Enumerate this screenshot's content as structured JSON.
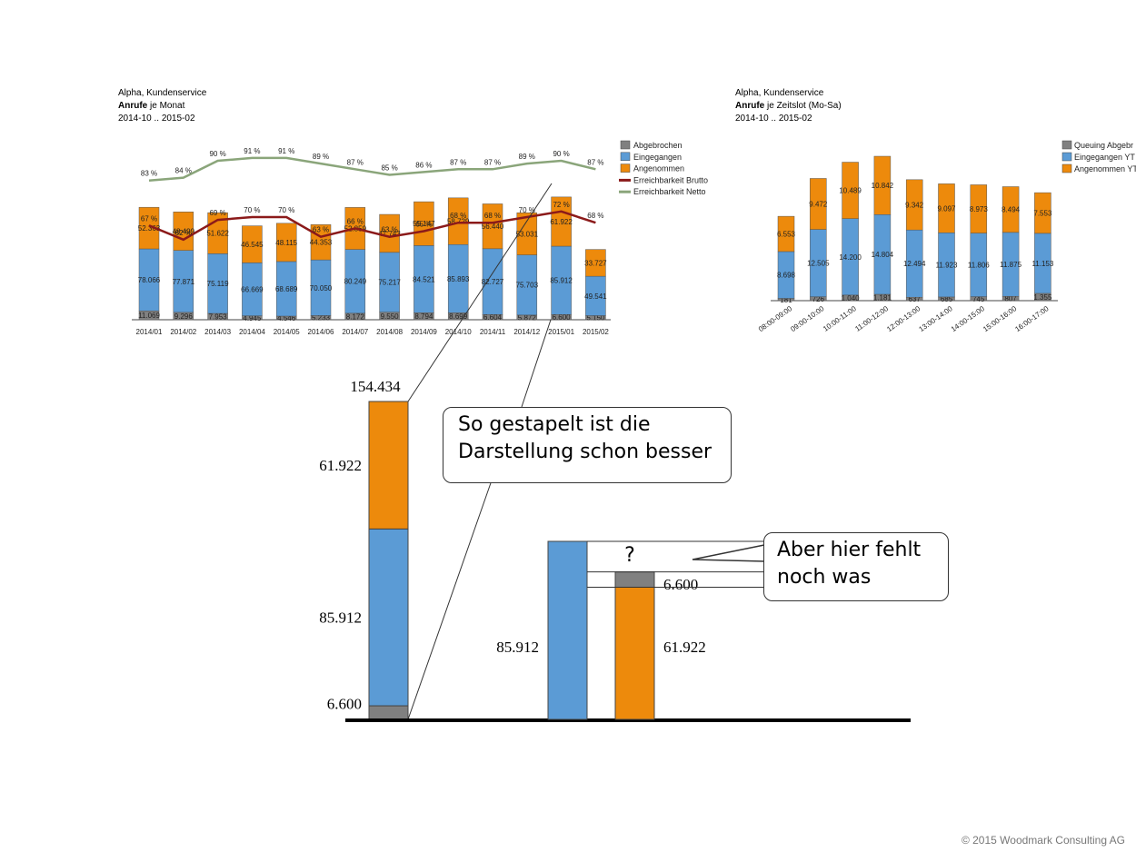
{
  "chart_left": {
    "header": {
      "line1": "Alpha, Kundenservice",
      "bold": "Anrufe",
      "rest": " je Monat",
      "range": "2014-10 .. 2015-02"
    },
    "legend": [
      "Abgebrochen",
      "Eingegangen",
      "Angenommen",
      "Erreichbarkeit Brutto",
      "Erreichbarkeit Netto"
    ]
  },
  "chart_right": {
    "header": {
      "line1": "Alpha, Kundenservice",
      "bold": "Anrufe",
      "rest": " je Zeitslot (Mo-Sa)",
      "range": "2014-10 .. 2015-02"
    },
    "legend": [
      "Queuing Abgebr",
      "Eingegangen YT",
      "Angenommen YT"
    ]
  },
  "chart_data": [
    {
      "type": "bar",
      "stacked": true,
      "categories": [
        "2014/01",
        "2014/02",
        "2014/03",
        "2014/04",
        "2014/05",
        "2014/06",
        "2014/07",
        "2014/08",
        "2014/09",
        "2014/10",
        "2014/11",
        "2014/12",
        "2015/01",
        "2015/02"
      ],
      "series": [
        {
          "name": "Abgebrochen",
          "color": "#808080",
          "values": [
            11069,
            9296,
            7953,
            4945,
            4546,
            5233,
            8172,
            9550,
            8794,
            8699,
            6604,
            5872,
            6600,
            5150
          ],
          "labels": [
            "11.069",
            "9.296",
            "7.953",
            "4.945",
            "4.546",
            "5.233",
            "8.172",
            "9.550",
            "8.794",
            "8.699",
            "6.604",
            "5.872",
            "6.600",
            "5.150"
          ]
        },
        {
          "name": "Eingegangen",
          "color": "#5b9bd5",
          "values": [
            78066,
            77871,
            75119,
            66669,
            68689,
            70050,
            80249,
            75217,
            84521,
            85893,
            82727,
            75703,
            85912,
            49541
          ],
          "labels": [
            "78.066",
            "77.871",
            "75.119",
            "66.669",
            "68.689",
            "70.050",
            "80.249",
            "75.217",
            "84.521",
            "85.893",
            "82.727",
            "75.703",
            "85.912",
            "49.541"
          ]
        },
        {
          "name": "Angenommen",
          "color": "#ed8a0c",
          "values": [
            52363,
            48499,
            51622,
            46545,
            48115,
            44353,
            52859,
            47743,
            55147,
            58729,
            56440,
            53031,
            61922,
            33727
          ],
          "labels": [
            "52.363",
            "48.499",
            "51.622",
            "46.545",
            "48.115",
            "44.353",
            "52.859",
            "47.743",
            "55.147",
            "58.729",
            "56.440",
            "53.031",
            "61.922",
            "33.727"
          ]
        }
      ],
      "lines": [
        {
          "name": "Erreichbarkeit Brutto",
          "color": "#8b1a1a",
          "values": [
            67,
            62,
            69,
            70,
            70,
            63,
            66,
            63,
            65,
            68,
            68,
            70,
            72,
            68
          ],
          "labels": [
            "67 %",
            "62 %",
            "69 %",
            "70 %",
            "70 %",
            "63 %",
            "66 %",
            "63 %",
            "65 %",
            "68 %",
            "68 %",
            "70 %",
            "72 %",
            "68 %"
          ]
        },
        {
          "name": "Erreichbarkeit Netto",
          "color": "#8aa57a",
          "values": [
            83,
            84,
            90,
            91,
            91,
            89,
            87,
            85,
            86,
            87,
            87,
            89,
            90,
            87
          ],
          "labels": [
            "83 %",
            "84 %",
            "90 %",
            "91 %",
            "91 %",
            "89 %",
            "87 %",
            "85 %",
            "86 %",
            "87 %",
            "87 %",
            "89 %",
            "90 %",
            "87 %"
          ]
        }
      ]
    },
    {
      "type": "bar",
      "stacked": true,
      "categories": [
        "08:00-09:00",
        "09:00-10:00",
        "10:00-11:00",
        "11:00-12:00",
        "12:00-13:00",
        "13:00-14:00",
        "14:00-15:00",
        "15:00-16:00",
        "16:00-17:00"
      ],
      "series": [
        {
          "name": "Queuing Abgebr",
          "color": "#808080",
          "values": [
            181,
            726,
            1040,
            1181,
            637,
            685,
            745,
            807,
            1355
          ],
          "labels": [
            "181",
            "726",
            "1.040",
            "1.181",
            "637",
            "685",
            "745",
            "807",
            "1.355"
          ]
        },
        {
          "name": "Eingegangen YT",
          "color": "#5b9bd5",
          "values": [
            8698,
            12505,
            14200,
            14804,
            12494,
            11923,
            11806,
            11875,
            11153
          ],
          "labels": [
            "8.698",
            "12.505",
            "14.200",
            "14.804",
            "12.494",
            "11.923",
            "11.806",
            "11.875",
            "11.153"
          ]
        },
        {
          "name": "Angenommen YT",
          "color": "#ed8a0c",
          "values": [
            6553,
            9472,
            10489,
            10842,
            9342,
            9097,
            8973,
            8494,
            7553
          ],
          "labels": [
            "6.553",
            "9.472",
            "10.489",
            "10.842",
            "9.342",
            "9.097",
            "8.973",
            "8.494",
            "7.553"
          ]
        }
      ]
    },
    {
      "type": "bar",
      "stacked": true,
      "categories": [
        "2015/01"
      ],
      "series": [
        {
          "name": "Abgebrochen",
          "color": "#808080",
          "values": [
            6600
          ],
          "labels": [
            "6.600"
          ]
        },
        {
          "name": "Eingegangen",
          "color": "#5b9bd5",
          "values": [
            85912
          ],
          "labels": [
            "85.912"
          ]
        },
        {
          "name": "Angenommen",
          "color": "#ed8a0c",
          "values": [
            61922
          ],
          "labels": [
            "61.922"
          ]
        }
      ],
      "total_label": "154.434"
    },
    {
      "type": "bar",
      "grouped": true,
      "bars": [
        {
          "segments": [
            {
              "name": "Eingegangen",
              "color": "#5b9bd5",
              "value": 85912,
              "label": "85.912"
            }
          ]
        },
        {
          "segments": [
            {
              "name": "Angenommen",
              "color": "#ed8a0c",
              "value": 61922,
              "label": "61.922"
            },
            {
              "name": "Abgebrochen",
              "color": "#808080",
              "value": 6600,
              "label": "6.600"
            }
          ]
        }
      ],
      "gap_label": "?"
    }
  ],
  "callouts": {
    "stacked_better": [
      "So gestapelt ist die",
      "Darstellung schon besser"
    ],
    "missing": [
      "Aber hier fehlt",
      "noch was"
    ]
  },
  "footer": "© 2015 Woodmark Consulting AG"
}
